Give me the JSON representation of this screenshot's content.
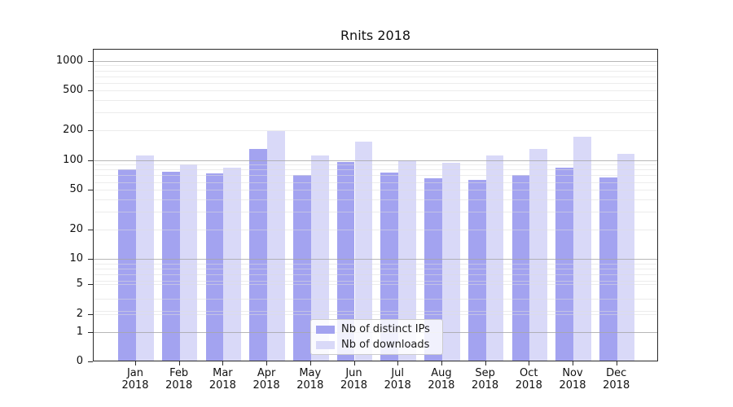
{
  "title": "Rnits 2018",
  "chart_data": {
    "type": "bar",
    "title": "Rnits 2018",
    "xlabel": "",
    "ylabel": "",
    "y_scale": "symlog",
    "grid": "on",
    "legend_position": "lower center",
    "ylim": [
      0,
      1320
    ],
    "y_ticks": [
      0,
      1,
      2,
      5,
      10,
      20,
      50,
      100,
      200,
      500,
      1000
    ],
    "y_major_gridlines": [
      1,
      10,
      100,
      1000
    ],
    "categories": [
      "Jan",
      "Feb",
      "Mar",
      "Apr",
      "May",
      "Jun",
      "Jul",
      "Aug",
      "Sep",
      "Oct",
      "Nov",
      "Dec"
    ],
    "year": "2018",
    "series": [
      {
        "name": "Nb of distinct IPs",
        "color": "#a3a3f0",
        "values": [
          80,
          76,
          73,
          130,
          70,
          96,
          75,
          65,
          63,
          71,
          84,
          66
        ]
      },
      {
        "name": "Nb of downloads",
        "color": "#d9d9f8",
        "values": [
          110,
          90,
          84,
          195,
          112,
          153,
          100,
          93,
          112,
          130,
          170,
          115
        ]
      }
    ]
  }
}
